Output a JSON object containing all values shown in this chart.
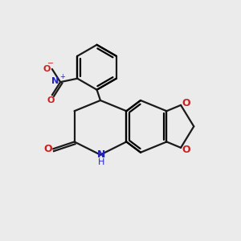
{
  "background_color": "#ebebeb",
  "bond_color": "#1a1a1a",
  "N_color": "#2020cc",
  "O_color": "#cc2020",
  "lw": 1.6,
  "figsize": [
    3.0,
    3.0
  ],
  "dpi": 100,
  "xlim": [
    0,
    10
  ],
  "ylim": [
    0,
    10
  ]
}
